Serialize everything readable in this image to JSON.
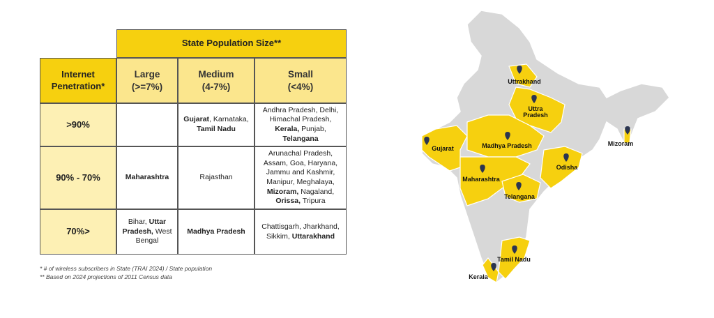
{
  "table": {
    "title": "State Population Size**",
    "row_header": "Internet Penetration*",
    "columns": [
      [
        "Large",
        "(>=7%)"
      ],
      [
        "Medium",
        "(4-7%)"
      ],
      [
        "Small",
        "(<4%)"
      ]
    ],
    "rows": [
      {
        "label": ">90%",
        "cells": [
          [],
          [
            {
              "text": "Gujarat",
              "bold": true
            },
            {
              "text": ", Karnataka, "
            },
            {
              "text": "Tamil Nadu",
              "bold": true
            }
          ],
          [
            {
              "text": "Andhra Pradesh, Delhi, Himachal Pradesh, "
            },
            {
              "text": "Kerala,",
              "bold": true
            },
            {
              "text": " Punjab, "
            },
            {
              "text": "Telangana",
              "bold": true
            }
          ]
        ]
      },
      {
        "label": "90% - 70%",
        "cells": [
          [
            {
              "text": "Maharashtra",
              "bold": true
            }
          ],
          [
            {
              "text": "Rajasthan"
            }
          ],
          [
            {
              "text": "Arunachal Pradesh, Assam, Goa, Haryana, Jammu and Kashmir, Manipur, Meghalaya, "
            },
            {
              "text": "Mizoram,",
              "bold": true
            },
            {
              "text": " Nagaland, "
            },
            {
              "text": "Orissa,",
              "bold": true
            },
            {
              "text": " Tripura"
            }
          ]
        ]
      },
      {
        "label": "70%>",
        "cells": [
          [
            {
              "text": "Bihar, "
            },
            {
              "text": "Uttar Pradesh,",
              "bold": true
            },
            {
              "text": " West Bengal"
            }
          ],
          [
            {
              "text": "Madhya Pradesh",
              "bold": true
            }
          ],
          [
            {
              "text": "Chattisgarh, Jharkhand, Sikkim, "
            },
            {
              "text": "Uttarakhand",
              "bold": true
            }
          ]
        ]
      }
    ]
  },
  "footnotes": [
    "* # of wireless subscribers in State (TRAI 2024)  / State population",
    "** Based on 2024 projections of 2011 Census data"
  ],
  "map": {
    "labels": [
      "Uttrakhand",
      "Uttra Pradesh",
      "Gujarat",
      "Madhya Pradesh",
      "Maharashtra",
      "Telangana",
      "Odisha",
      "Mizoram",
      "Tamil Nadu",
      "Kerala"
    ]
  }
}
